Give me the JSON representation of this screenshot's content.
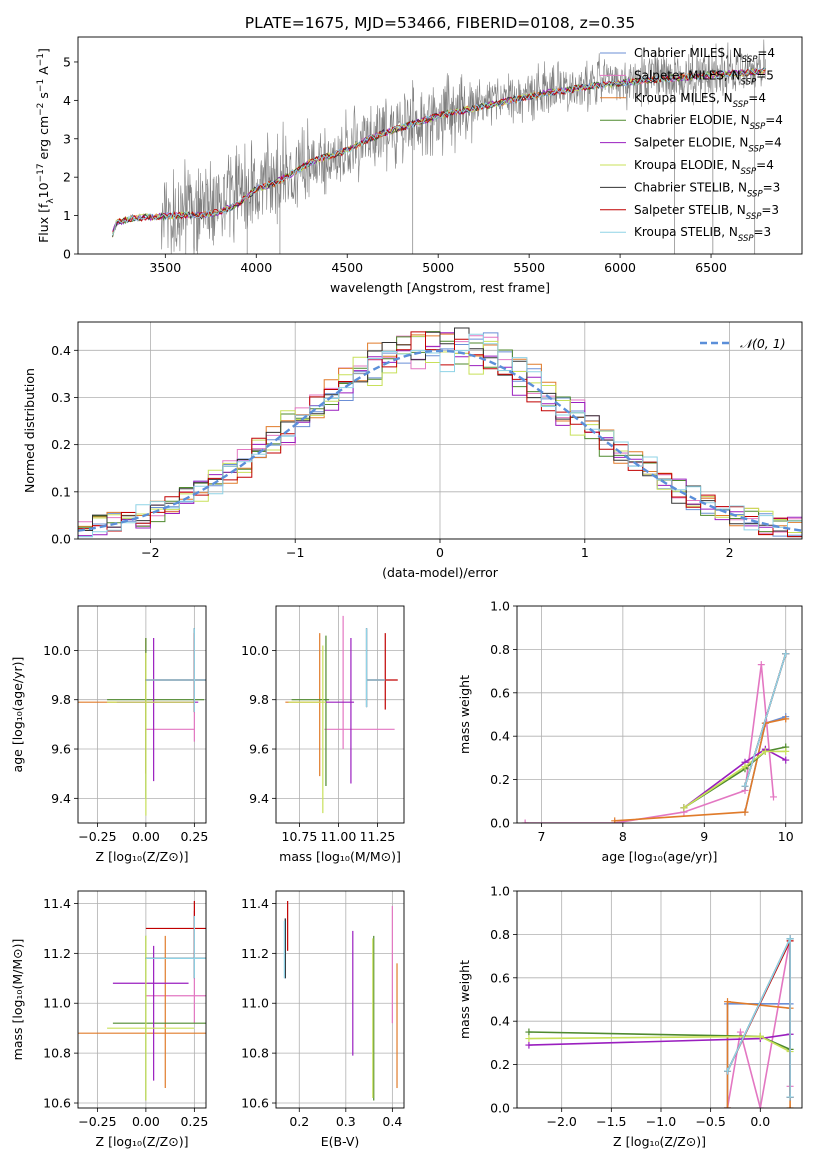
{
  "figure": {
    "title": "PLATE=1675, MJD=53466, FIBERID=0108, z=0.35"
  },
  "colors": {
    "Chabrier MILES": "#6b8fd6",
    "Salpeter MILES": "#e377c2",
    "Kroupa MILES": "#e07b2a",
    "Chabrier ELODIE": "#4f8a2e",
    "Salpeter ELODIE": "#9a1fbf",
    "Kroupa ELODIE": "#c8e05a",
    "Chabrier STELIB": "#333333",
    "Salpeter STELIB": "#c00000",
    "Kroupa STELIB": "#8fd3e6",
    "data": "#7f7f7f",
    "normal": "#5b8fd9",
    "grid": "#b0b0b0"
  },
  "chart_data": [
    {
      "id": "spectrum",
      "type": "line",
      "xlabel": "wavelength [Angstrom, rest frame]",
      "ylabel_parts": [
        "Flux [f",
        "λ",
        "10",
        "−17",
        " erg cm",
        "−2",
        " s",
        "−1",
        " A",
        "−1",
        "]"
      ],
      "xlim": [
        3020,
        7000
      ],
      "ylim": [
        0,
        5.65
      ],
      "xticks": [
        3500,
        4000,
        4500,
        5000,
        5500,
        6000,
        6500
      ],
      "yticks": [
        0,
        1,
        2,
        3,
        4,
        5
      ],
      "grid": false,
      "legend_position": "top-right",
      "legend": [
        {
          "name": "Chabrier MILES",
          "n": "4"
        },
        {
          "name": "Salpeter MILES",
          "n": "5"
        },
        {
          "name": "Kroupa MILES",
          "n": "4"
        },
        {
          "name": "Chabrier ELODIE",
          "n": "4"
        },
        {
          "name": "Salpeter ELODIE",
          "n": "4"
        },
        {
          "name": "Kroupa ELODIE",
          "n": "4"
        },
        {
          "name": "Chabrier STELIB",
          "n": "3"
        },
        {
          "name": "Salpeter STELIB",
          "n": "3"
        },
        {
          "name": "Kroupa STELIB",
          "n": "3"
        }
      ],
      "data_trend": [
        [
          3220,
          0.6
        ],
        [
          3240,
          0.85
        ],
        [
          3300,
          0.9
        ],
        [
          3400,
          0.95
        ],
        [
          3500,
          1.0
        ],
        [
          3600,
          1.05
        ],
        [
          3700,
          1.1
        ],
        [
          3800,
          1.2
        ],
        [
          3900,
          1.4
        ],
        [
          4000,
          1.75
        ],
        [
          4100,
          1.9
        ],
        [
          4200,
          2.2
        ],
        [
          4300,
          2.5
        ],
        [
          4400,
          2.6
        ],
        [
          4500,
          2.75
        ],
        [
          4600,
          3.0
        ],
        [
          4700,
          3.2
        ],
        [
          4800,
          3.35
        ],
        [
          4900,
          3.5
        ],
        [
          5000,
          3.65
        ],
        [
          5100,
          3.75
        ],
        [
          5200,
          3.85
        ],
        [
          5300,
          3.95
        ],
        [
          5400,
          4.05
        ],
        [
          5500,
          4.15
        ],
        [
          5600,
          4.25
        ],
        [
          5700,
          4.3
        ],
        [
          5800,
          4.4
        ],
        [
          5900,
          4.45
        ],
        [
          6000,
          4.5
        ],
        [
          6100,
          4.55
        ],
        [
          6200,
          4.6
        ],
        [
          6300,
          4.62
        ],
        [
          6400,
          4.66
        ],
        [
          6500,
          4.7
        ],
        [
          6600,
          4.72
        ],
        [
          6700,
          4.75
        ],
        [
          6800,
          4.8
        ]
      ],
      "model_trend": [
        [
          3210,
          0.5
        ],
        [
          3230,
          0.8
        ],
        [
          3300,
          0.92
        ],
        [
          3400,
          0.96
        ],
        [
          3500,
          0.98
        ],
        [
          3600,
          1.02
        ],
        [
          3700,
          1.0
        ],
        [
          3800,
          1.1
        ],
        [
          3900,
          1.3
        ],
        [
          4000,
          1.7
        ],
        [
          4100,
          1.85
        ],
        [
          4200,
          2.1
        ],
        [
          4300,
          2.4
        ],
        [
          4400,
          2.55
        ],
        [
          4500,
          2.7
        ],
        [
          4600,
          2.95
        ],
        [
          4700,
          3.15
        ],
        [
          4800,
          3.3
        ],
        [
          4900,
          3.45
        ],
        [
          5000,
          3.6
        ],
        [
          5100,
          3.7
        ],
        [
          5200,
          3.8
        ],
        [
          5300,
          3.9
        ],
        [
          5400,
          4.0
        ],
        [
          5500,
          4.1
        ],
        [
          5600,
          4.2
        ],
        [
          5700,
          4.25
        ],
        [
          5800,
          4.35
        ],
        [
          5900,
          4.4
        ],
        [
          6000,
          4.45
        ],
        [
          6100,
          4.5
        ],
        [
          6200,
          4.55
        ],
        [
          6300,
          4.58
        ],
        [
          6400,
          4.62
        ],
        [
          6500,
          4.66
        ],
        [
          6600,
          4.7
        ],
        [
          6700,
          4.72
        ],
        [
          6800,
          4.76
        ]
      ]
    },
    {
      "id": "residuals",
      "type": "bar",
      "xlabel": "(data-model)/error",
      "ylabel": "Normed distribution",
      "xlim": [
        -2.5,
        2.5
      ],
      "ylim": [
        0,
        0.46
      ],
      "xticks": [
        -2,
        -1,
        0,
        1,
        2
      ],
      "yticks": [
        0.0,
        0.1,
        0.2,
        0.3,
        0.4
      ],
      "grid": true,
      "legend_position": "top-right",
      "legend_label": "𝒩(0, 1)",
      "bin_width": 0.1,
      "bin_start": -2.5,
      "normal": {
        "mean": 0,
        "sigma": 1
      }
    },
    {
      "id": "age-vs-Z",
      "type": "scatter",
      "xlabel": "Z [log₁₀(Z/Z⊙)]",
      "ylabel": "age  [log₁₀(age/yr)]",
      "xlim": [
        -0.35,
        0.31
      ],
      "ylim": [
        9.3,
        10.18
      ],
      "xticks": [
        -0.25,
        0.0,
        0.25
      ],
      "yticks": [
        9.4,
        9.6,
        9.8,
        10.0
      ],
      "grid": true,
      "errorbars": [
        {
          "m": "Chabrier MILES",
          "x": 0.25,
          "xl": 0.05,
          "xh": 0.31,
          "y": 9.88,
          "yl": 9.75,
          "yh": 10.09
        },
        {
          "m": "Salpeter MILES",
          "x": 0.25,
          "xl": 0.0,
          "xh": 0.25,
          "y": 9.68,
          "yl": 9.63,
          "yh": 10.05
        },
        {
          "m": "Kroupa MILES",
          "x": 0.0,
          "xl": -0.35,
          "xh": 0.25,
          "y": 9.79,
          "yl": 9.5,
          "yh": 10.05
        },
        {
          "m": "Chabrier ELODIE",
          "x": 0.0,
          "xl": -0.2,
          "xh": 0.3,
          "y": 9.8,
          "yl": 9.4,
          "yh": 10.05
        },
        {
          "m": "Salpeter ELODIE",
          "x": 0.04,
          "xl": -0.15,
          "xh": 0.27,
          "y": 9.79,
          "yl": 9.47,
          "yh": 10.05
        },
        {
          "m": "Kroupa ELODIE",
          "x": 0.0,
          "xl": -0.2,
          "xh": 0.25,
          "y": 9.79,
          "yl": 9.33,
          "yh": 9.99
        },
        {
          "m": "Chabrier STELIB",
          "x": 0.25,
          "xl": 0.0,
          "xh": 0.31,
          "y": 9.88,
          "yl": 9.75,
          "yh": 10.09
        },
        {
          "m": "Salpeter STELIB",
          "x": 0.25,
          "xl": 0.0,
          "xh": 0.31,
          "y": 9.88,
          "yl": 9.75,
          "yh": 10.07
        },
        {
          "m": "Kroupa STELIB",
          "x": 0.25,
          "xl": 0.0,
          "xh": 0.31,
          "y": 9.88,
          "yl": 9.75,
          "yh": 10.09
        }
      ]
    },
    {
      "id": "age-vs-mass",
      "type": "scatter",
      "xlabel": "mass [log₁₀(M/M⊙)]",
      "ylabel": "",
      "xlim": [
        10.6,
        11.42
      ],
      "ylim": [
        9.3,
        10.18
      ],
      "xticks": [
        10.75,
        11.0,
        11.25
      ],
      "yticks": [
        9.4,
        9.6,
        9.8,
        10.0
      ],
      "grid": true,
      "errorbars": [
        {
          "m": "Chabrier MILES",
          "x": 11.18,
          "xl": 11.18,
          "xh": 11.3,
          "y": 9.88,
          "yl": 9.77,
          "yh": 10.09
        },
        {
          "m": "Salpeter MILES",
          "x": 11.03,
          "xl": 10.91,
          "xh": 11.36,
          "y": 9.68,
          "yl": 9.6,
          "yh": 10.14
        },
        {
          "m": "Kroupa MILES",
          "x": 10.88,
          "xl": 10.66,
          "xh": 10.88,
          "y": 9.79,
          "yl": 9.49,
          "yh": 10.07
        },
        {
          "m": "Chabrier ELODIE",
          "x": 10.92,
          "xl": 10.7,
          "xh": 10.94,
          "y": 9.8,
          "yl": 9.45,
          "yh": 10.06
        },
        {
          "m": "Salpeter ELODIE",
          "x": 11.08,
          "xl": 10.92,
          "xh": 11.1,
          "y": 9.79,
          "yl": 9.46,
          "yh": 10.05
        },
        {
          "m": "Kroupa ELODIE",
          "x": 10.9,
          "xl": 10.68,
          "xh": 10.92,
          "y": 9.79,
          "yl": 9.34,
          "yh": 10.02
        },
        {
          "m": "Chabrier STELIB",
          "x": 11.18,
          "xl": 11.18,
          "xh": 11.3,
          "y": 9.88,
          "yl": 9.77,
          "yh": 10.09
        },
        {
          "m": "Salpeter STELIB",
          "x": 11.3,
          "xl": 11.18,
          "xh": 11.38,
          "y": 9.88,
          "yl": 9.76,
          "yh": 10.07
        },
        {
          "m": "Kroupa STELIB",
          "x": 11.18,
          "xl": 11.18,
          "xh": 11.3,
          "y": 9.88,
          "yl": 9.77,
          "yh": 10.09
        }
      ]
    },
    {
      "id": "mass-weight-vs-age",
      "type": "line",
      "xlabel": "age  [log₁₀(age/yr)]",
      "ylabel": "mass weight",
      "xlim": [
        6.7,
        10.2
      ],
      "ylim": [
        0,
        1.0
      ],
      "xticks": [
        7,
        8,
        9,
        10
      ],
      "yticks": [
        0.0,
        0.2,
        0.4,
        0.6,
        0.8,
        1.0
      ],
      "grid": true,
      "series": [
        {
          "m": "Chabrier MILES",
          "x": [
            9.5,
            9.75,
            10.0
          ],
          "y": [
            0.05,
            0.46,
            0.49
          ]
        },
        {
          "m": "Salpeter MILES",
          "x": [
            6.8,
            7.9,
            8.75,
            9.5,
            9.7,
            9.85
          ],
          "y": [
            0.0,
            0.0,
            0.05,
            0.15,
            0.73,
            0.12
          ]
        },
        {
          "m": "Kroupa MILES",
          "x": [
            7.9,
            9.5,
            9.75,
            10.0
          ],
          "y": [
            0.01,
            0.05,
            0.46,
            0.48
          ]
        },
        {
          "m": "Chabrier ELODIE",
          "x": [
            8.75,
            9.5,
            9.75,
            10.0
          ],
          "y": [
            0.07,
            0.25,
            0.33,
            0.35
          ]
        },
        {
          "m": "Salpeter ELODIE",
          "x": [
            8.75,
            9.5,
            9.75,
            10.0
          ],
          "y": [
            0.07,
            0.28,
            0.34,
            0.29
          ]
        },
        {
          "m": "Kroupa ELODIE",
          "x": [
            8.75,
            9.5,
            9.75,
            10.0
          ],
          "y": [
            0.07,
            0.26,
            0.33,
            0.33
          ]
        },
        {
          "m": "Chabrier STELIB",
          "x": [
            9.5,
            10.0
          ],
          "y": [
            0.17,
            0.78
          ]
        },
        {
          "m": "Salpeter STELIB",
          "x": [
            9.5,
            10.0
          ],
          "y": [
            0.17,
            0.78
          ]
        },
        {
          "m": "Kroupa STELIB",
          "x": [
            9.5,
            10.0
          ],
          "y": [
            0.17,
            0.78
          ]
        }
      ]
    },
    {
      "id": "mass-vs-Z",
      "type": "scatter",
      "xlabel": "Z [log₁₀(Z/Z⊙)]",
      "ylabel": "mass [log₁₀(M/M⊙)]",
      "xlim": [
        -0.35,
        0.31
      ],
      "ylim": [
        10.58,
        11.45
      ],
      "xticks": [
        -0.25,
        0.0,
        0.25
      ],
      "yticks": [
        10.6,
        10.8,
        11.0,
        11.2,
        11.4
      ],
      "grid": true,
      "errorbars": [
        {
          "m": "Chabrier MILES",
          "x": 0.25,
          "xl": 0.0,
          "xh": 0.31,
          "y": 11.18,
          "yl": 11.1,
          "yh": 11.35
        },
        {
          "m": "Salpeter MILES",
          "x": 0.25,
          "xl": 0.0,
          "xh": 0.31,
          "y": 11.03,
          "yl": 10.92,
          "yh": 11.37
        },
        {
          "m": "Kroupa MILES",
          "x": 0.1,
          "xl": -0.35,
          "xh": 0.31,
          "y": 10.88,
          "yl": 10.66,
          "yh": 11.27
        },
        {
          "m": "Chabrier ELODIE",
          "x": 0.0,
          "xl": -0.17,
          "xh": 0.31,
          "y": 10.92,
          "yl": 10.61,
          "yh": 11.27
        },
        {
          "m": "Salpeter ELODIE",
          "x": 0.04,
          "xl": -0.17,
          "xh": 0.22,
          "y": 11.08,
          "yl": 10.69,
          "yh": 11.23
        },
        {
          "m": "Kroupa ELODIE",
          "x": 0.0,
          "xl": -0.2,
          "xh": 0.25,
          "y": 10.9,
          "yl": 10.61,
          "yh": 11.27
        },
        {
          "m": "Chabrier STELIB",
          "x": 0.25,
          "xl": 0.0,
          "xh": 0.31,
          "y": 11.18,
          "yl": 11.1,
          "yh": 11.35
        },
        {
          "m": "Salpeter STELIB",
          "x": 0.25,
          "xl": 0.0,
          "xh": 0.31,
          "y": 11.3,
          "yl": 11.18,
          "yh": 11.41
        },
        {
          "m": "Kroupa STELIB",
          "x": 0.25,
          "xl": 0.0,
          "xh": 0.31,
          "y": 11.18,
          "yl": 11.1,
          "yh": 11.35
        }
      ]
    },
    {
      "id": "mass-vs-ebv",
      "type": "scatter",
      "xlabel": "E(B-V)",
      "ylabel": "",
      "xlim": [
        0.15,
        0.425
      ],
      "ylim": [
        10.58,
        11.45
      ],
      "xticks": [
        0.2,
        0.3,
        0.4
      ],
      "yticks": [
        10.6,
        10.8,
        11.0,
        11.2,
        11.4
      ],
      "grid": true,
      "errorbars": [
        {
          "m": "Chabrier MILES",
          "x": 0.17,
          "y": 11.18,
          "yl": 11.1,
          "yh": 11.34
        },
        {
          "m": "Salpeter MILES",
          "x": 0.4,
          "y": 11.03,
          "yl": 10.92,
          "yh": 11.39
        },
        {
          "m": "Kroupa MILES",
          "x": 0.41,
          "y": 10.88,
          "yl": 10.66,
          "yh": 11.16
        },
        {
          "m": "Chabrier ELODIE",
          "x": 0.36,
          "y": 10.92,
          "yl": 10.61,
          "yh": 11.27
        },
        {
          "m": "Salpeter ELODIE",
          "x": 0.315,
          "y": 11.08,
          "yl": 10.79,
          "yh": 11.29
        },
        {
          "m": "Kroupa ELODIE",
          "x": 0.358,
          "y": 10.9,
          "yl": 10.62,
          "yh": 11.26
        },
        {
          "m": "Chabrier STELIB",
          "x": 0.17,
          "y": 11.18,
          "yl": 11.1,
          "yh": 11.34
        },
        {
          "m": "Salpeter STELIB",
          "x": 0.175,
          "y": 11.3,
          "yl": 11.21,
          "yh": 11.41
        },
        {
          "m": "Kroupa STELIB",
          "x": 0.168,
          "y": 11.18,
          "yl": 11.1,
          "yh": 11.33
        }
      ]
    },
    {
      "id": "mass-weight-vs-Z",
      "type": "line",
      "xlabel": "Z [log₁₀(Z/Z⊙)]",
      "ylabel": "mass weight",
      "xlim": [
        -2.45,
        0.42
      ],
      "ylim": [
        0,
        1.0
      ],
      "xticks": [
        -2.0,
        -1.5,
        -1.0,
        -0.5,
        0.0
      ],
      "yticks": [
        0.0,
        0.2,
        0.4,
        0.6,
        0.8,
        1.0
      ],
      "xtick_labels": [
        "−2.0",
        "−1.5",
        "−1.0",
        "−0.5",
        "0.0"
      ],
      "grid": true,
      "series": [
        {
          "m": "Chabrier MILES",
          "x": [
            -0.33,
            -0.33,
            0.3,
            0.3
          ],
          "y": [
            0.0,
            0.48,
            0.48,
            0.05
          ]
        },
        {
          "m": "Salpeter MILES",
          "x": [
            -0.33,
            -0.2,
            0.0,
            0.3,
            0.3
          ],
          "y": [
            0.0,
            0.35,
            0.0,
            0.78,
            0.1
          ]
        },
        {
          "m": "Kroupa MILES",
          "x": [
            -0.33,
            -0.33,
            0.3,
            0.3
          ],
          "y": [
            0.0,
            0.49,
            0.46,
            0.0
          ]
        },
        {
          "m": "Chabrier ELODIE",
          "x": [
            -2.33,
            0.0,
            0.3
          ],
          "y": [
            0.35,
            0.33,
            0.27
          ]
        },
        {
          "m": "Salpeter ELODIE",
          "x": [
            -2.33,
            0.0,
            0.3
          ],
          "y": [
            0.29,
            0.32,
            0.34
          ]
        },
        {
          "m": "Kroupa ELODIE",
          "x": [
            -2.33,
            0.0,
            0.3
          ],
          "y": [
            0.32,
            0.33,
            0.26
          ]
        },
        {
          "m": "Chabrier STELIB",
          "x": [
            -0.33,
            0.3,
            0.3
          ],
          "y": [
            0.17,
            0.78,
            0.05
          ]
        },
        {
          "m": "Salpeter STELIB",
          "x": [
            -0.33,
            0.3,
            0.3
          ],
          "y": [
            0.17,
            0.77,
            0.05
          ]
        },
        {
          "m": "Kroupa STELIB",
          "x": [
            -0.33,
            0.3,
            0.3
          ],
          "y": [
            0.17,
            0.78,
            0.05
          ]
        }
      ]
    }
  ]
}
